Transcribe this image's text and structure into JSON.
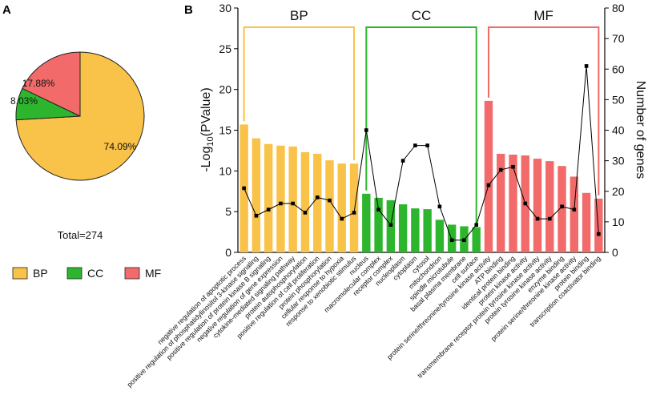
{
  "panel_a_label": "A",
  "panel_b_label": "B",
  "chart_data": [
    {
      "type": "pie",
      "panel": "A",
      "slices": [
        {
          "category": "BP",
          "value": 74.09,
          "label": "74.09%",
          "color": "#F9C248"
        },
        {
          "category": "CC",
          "value": 8.03,
          "label": "8.03%",
          "color": "#2DB62D"
        },
        {
          "category": "MF",
          "value": 17.88,
          "label": "17.88%",
          "color": "#F26A6A"
        }
      ],
      "total_label": "Total=274",
      "legend": [
        {
          "name": "BP",
          "color": "#F9C248"
        },
        {
          "name": "CC",
          "color": "#2DB62D"
        },
        {
          "name": "MF",
          "color": "#F26A6A"
        }
      ]
    },
    {
      "type": "bar",
      "panel": "B",
      "ylabel_main": "-Log",
      "ylabel_sub": "10",
      "ylabel_tail": "(PValue)",
      "y2label": "Number of genes",
      "ylim": [
        0,
        30
      ],
      "y2lim": [
        0,
        80
      ],
      "yticks": [
        0,
        5,
        10,
        15,
        20,
        25,
        30
      ],
      "y2ticks": [
        0,
        10,
        20,
        30,
        40,
        50,
        60,
        70,
        80
      ],
      "groups": [
        {
          "name": "BP",
          "start": 0,
          "end": 9,
          "color": "#F9C248",
          "bracket_color": "#F9C248"
        },
        {
          "name": "CC",
          "start": 10,
          "end": 19,
          "color": "#2DB62D",
          "bracket_color": "#2DB62D"
        },
        {
          "name": "MF",
          "start": 20,
          "end": 29,
          "color": "#F26A6A",
          "bracket_color": "#F26A6A"
        }
      ],
      "categories": [
        "negative regulation of apoptotic process",
        "positive regulation of phosphatidylinositol 3-kinase signaling",
        "positive regulation of protein kinase B signaling",
        "negative regulation of gene expression",
        "cytokine-mediated signaling pathway",
        "protein autophosphorylation",
        "positive regulation of cell proliferation",
        "protein phosphorylation",
        "cellular response to hypoxia",
        "response to xenobiotic stimulus",
        "nucleus",
        "macromolecular complex",
        "receptor complex",
        "nucleoplasm",
        "cytoplasm",
        "cytosol",
        "mitochondrion",
        "spindle microtubule",
        "basal plasma membrane",
        "cell surface",
        "protein serine/threonine/tyrosine kinase activity",
        "ATP binding",
        "identical protein binding",
        "protein kinase activity",
        "transmembrane receptor protein tyrosine kinase activity",
        "protein tyrosine kinase activity",
        "enzyme binding",
        "protein serine/threonine kinase activity",
        "protein binding",
        "transcription coactivator binding"
      ],
      "series": [
        {
          "name": "-Log10(PValue)",
          "kind": "bar",
          "axis": "left",
          "values": [
            15.7,
            14.0,
            13.3,
            13.1,
            13.0,
            12.3,
            12.1,
            11.3,
            10.9,
            10.9,
            7.2,
            6.7,
            6.4,
            5.9,
            5.4,
            5.3,
            4.0,
            3.4,
            3.2,
            3.1,
            18.6,
            12.1,
            12.0,
            11.9,
            11.5,
            11.2,
            10.6,
            9.3,
            7.3,
            6.6
          ]
        },
        {
          "name": "Number of genes",
          "kind": "line",
          "axis": "right",
          "values": [
            21,
            12,
            14,
            16,
            16,
            13,
            18,
            17,
            11,
            13,
            40,
            14,
            9,
            30,
            35,
            35,
            15,
            4,
            4,
            9,
            22,
            27,
            28,
            16,
            11,
            11,
            15,
            14,
            61,
            6
          ]
        }
      ]
    }
  ]
}
